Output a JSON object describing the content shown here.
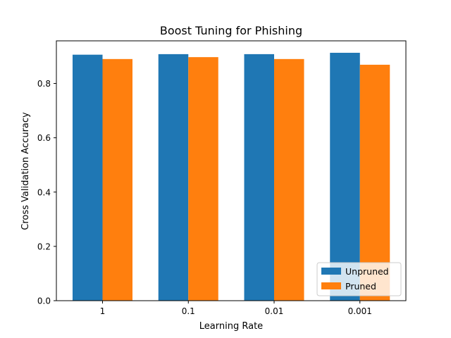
{
  "chart_data": {
    "type": "bar",
    "title": "Boost Tuning for Phishing",
    "xlabel": "Learning Rate",
    "ylabel": "Cross Validation Accuracy",
    "categories": [
      "1",
      "0.1",
      "0.01",
      "0.001"
    ],
    "series": [
      {
        "name": "Unpruned",
        "color": "#1f77b4",
        "values": [
          0.906,
          0.908,
          0.908,
          0.913
        ]
      },
      {
        "name": "Pruned",
        "color": "#ff7f0e",
        "values": [
          0.89,
          0.897,
          0.89,
          0.869
        ]
      }
    ],
    "ylim": [
      0,
      0.957
    ],
    "yticks": [
      "0.0",
      "0.2",
      "0.4",
      "0.6",
      "0.8"
    ],
    "grid": false,
    "legend_position": "lower right"
  }
}
